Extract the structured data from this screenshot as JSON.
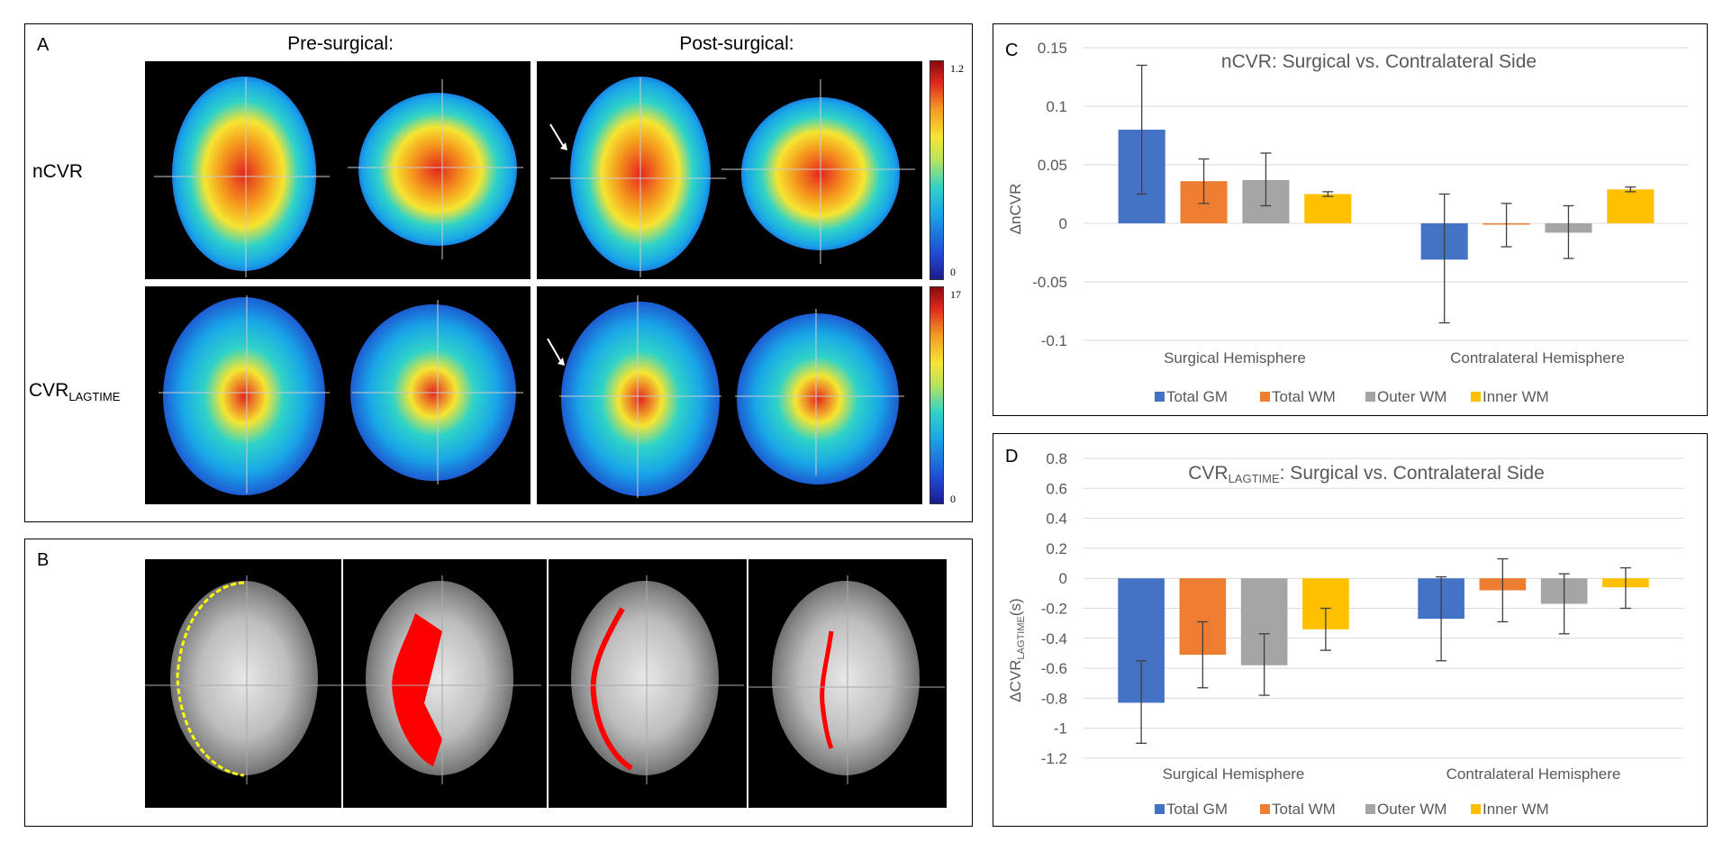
{
  "panel_a": {
    "label": "A",
    "col_pre": "Pre-surgical:",
    "col_post": "Post-surgical:",
    "row_ncvr": "nCVR",
    "row_cvr_main": "CVR",
    "row_cvr_sub": "LAGTIME",
    "cbar_top_max": "1.2",
    "cbar_top_min": "0",
    "cbar_bottom_max": "17",
    "cbar_bottom_min": "0"
  },
  "panel_b": {
    "label": "B"
  },
  "panel_c": {
    "label": "C"
  },
  "panel_d": {
    "label": "D"
  },
  "colors": {
    "total_gm": "#4472C4",
    "total_wm": "#ED7D31",
    "outer_wm": "#A5A5A5",
    "inner_wm": "#FFC000",
    "white_matter_mask": "#ff0000",
    "gm_outline": "#ffff00"
  },
  "chart_data": [
    {
      "type": "bar",
      "title": "nCVR: Surgical vs. Contralateral Side",
      "xlabel": "",
      "ylabel": "ΔnCVR",
      "ylim": [
        -0.1,
        0.15
      ],
      "yticks": [
        0.15,
        0.1,
        0.05,
        0,
        -0.05,
        -0.1
      ],
      "ytick_labels": [
        "0.15",
        "0.1",
        "0.05",
        "0",
        "-0.05",
        "-0.1"
      ],
      "categories": [
        "Surgical Hemisphere",
        "Contralateral Hemisphere"
      ],
      "legend_position": "bottom",
      "series": [
        {
          "name": "Total GM",
          "values": [
            0.08,
            -0.031
          ],
          "err_low": [
            0.025,
            -0.085
          ],
          "err_high": [
            0.135,
            0.025
          ]
        },
        {
          "name": "Total WM",
          "values": [
            0.036,
            -0.001
          ],
          "err_low": [
            0.017,
            -0.02
          ],
          "err_high": [
            0.055,
            0.017
          ]
        },
        {
          "name": "Outer WM",
          "values": [
            0.037,
            -0.008
          ],
          "err_low": [
            0.015,
            -0.03
          ],
          "err_high": [
            0.06,
            0.015
          ]
        },
        {
          "name": "Inner WM",
          "values": [
            0.025,
            0.029
          ],
          "err_low": [
            0.023,
            0.027
          ],
          "err_high": [
            0.027,
            0.031
          ]
        }
      ]
    },
    {
      "type": "bar",
      "title": "CVR",
      "title_sub": "LAGTIME",
      "title_suffix": ": Surgical vs. Contralateral Side",
      "xlabel": "",
      "ylabel": "ΔCVR",
      "ylabel_sub": "LAGTIME",
      "ylabel_suffix": "(s)",
      "ylim": [
        -1.2,
        0.8
      ],
      "yticks": [
        0.8,
        0.6,
        0.4,
        0.2,
        0,
        -0.2,
        -0.4,
        -0.6,
        -0.8,
        -1,
        -1.2
      ],
      "ytick_labels": [
        "0.8",
        "0.6",
        "0.4",
        "0.2",
        "0",
        "-0.2",
        "-0.4",
        "-0.6",
        "-0.8",
        "-1",
        "-1.2"
      ],
      "categories": [
        "Surgical Hemisphere",
        "Contralateral Hemisphere"
      ],
      "legend_position": "bottom",
      "series": [
        {
          "name": "Total GM",
          "values": [
            -0.83,
            -0.27
          ],
          "err_low": [
            -1.1,
            -0.55
          ],
          "err_high": [
            -0.55,
            0.01
          ]
        },
        {
          "name": "Total WM",
          "values": [
            -0.51,
            -0.08
          ],
          "err_low": [
            -0.73,
            -0.29
          ],
          "err_high": [
            -0.29,
            0.13
          ]
        },
        {
          "name": "Outer WM",
          "values": [
            -0.58,
            -0.17
          ],
          "err_low": [
            -0.78,
            -0.37
          ],
          "err_high": [
            -0.37,
            0.03
          ]
        },
        {
          "name": "Inner WM",
          "values": [
            -0.34,
            -0.06
          ],
          "err_low": [
            -0.48,
            -0.2
          ],
          "err_high": [
            -0.2,
            0.07
          ]
        }
      ]
    }
  ]
}
